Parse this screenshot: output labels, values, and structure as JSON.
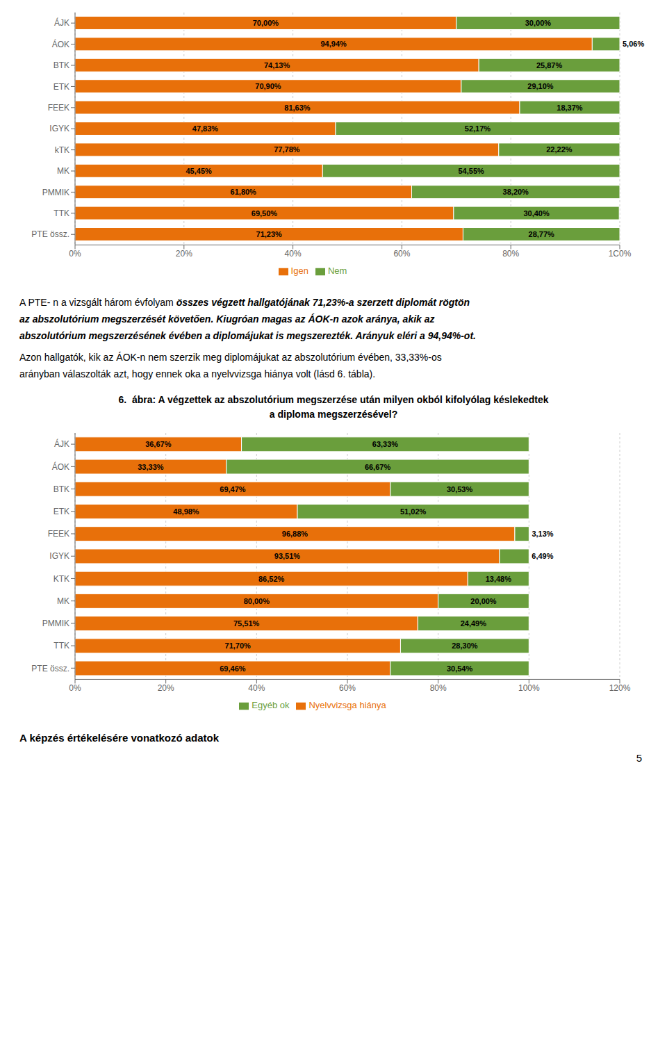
{
  "chart_data": [
    {
      "type": "bar",
      "orientation": "horizontal",
      "stacked": true,
      "data_labels": true,
      "grid": true,
      "legend": "bottom",
      "categories": [
        "ÁJK",
        "ÁOK",
        "BTK",
        "ETK",
        "FEEK",
        "IGYK",
        "kTK",
        "MK",
        "PMMIK",
        "TTK",
        "PTE össz."
      ],
      "series": [
        {
          "name": "Igen",
          "color": "#E8700A",
          "values": [
            70.0,
            94.94,
            74.13,
            70.9,
            81.63,
            47.83,
            77.78,
            45.45,
            61.8,
            69.5,
            71.23
          ],
          "value_labels": [
            "70,00%",
            "94,94%",
            "74,13%",
            "70,90%",
            "81,63%",
            "47,83%",
            "77,78%",
            "45,45%",
            "61,80%",
            "69,50%",
            "71,23%"
          ]
        },
        {
          "name": "Nem",
          "color": "#6A9E3C",
          "values": [
            30.0,
            5.06,
            25.87,
            29.1,
            18.37,
            52.17,
            22.22,
            54.55,
            38.2,
            30.4,
            28.77
          ],
          "value_labels": [
            "30,00%",
            "5,06%",
            "25,87%",
            "29,10%",
            "18,37%",
            "52,17%",
            "22,22%",
            "54,55%",
            "38,20%",
            "30,40%",
            "28,77%"
          ]
        }
      ],
      "xlim": [
        0,
        100
      ],
      "xticks": [
        {
          "value": 0,
          "label": "0%"
        },
        {
          "value": 20,
          "label": "20%"
        },
        {
          "value": 40,
          "label": "40%"
        },
        {
          "value": 60,
          "label": "60%"
        },
        {
          "value": 80,
          "label": "80%"
        },
        {
          "value": 100,
          "label": "1C0%"
        }
      ]
    },
    {
      "type": "bar",
      "orientation": "horizontal",
      "stacked": true,
      "data_labels": true,
      "grid": true,
      "legend": "bottom",
      "title": "6.  ábra: A végzettek az abszolutórium megszerzése után milyen okból kifolyólag késlekedtek\na diploma megszerzésével?",
      "categories": [
        "ÁJK",
        "ÁOK",
        "BTK",
        "ETK",
        "FEEK",
        "IGYK",
        "KTK",
        "MK",
        "PMMIK",
        "TTK",
        "PTE össz."
      ],
      "series": [
        {
          "name": "Nyelvvizsga hiánya",
          "color": "#E8700A",
          "values": [
            36.67,
            33.33,
            69.47,
            48.98,
            96.88,
            93.51,
            86.52,
            80.0,
            75.51,
            71.7,
            69.46
          ],
          "value_labels": [
            "36,67%",
            "33,33%",
            "69,47%",
            "48,98%",
            "96,88%",
            "93,51%",
            "86,52%",
            "80,00%",
            "75,51%",
            "71,70%",
            "69,46%"
          ]
        },
        {
          "name": "Egyéb ok",
          "color": "#6A9E3C",
          "values": [
            63.33,
            66.67,
            30.53,
            51.02,
            3.13,
            6.49,
            13.48,
            20.0,
            24.49,
            28.3,
            30.54
          ],
          "value_labels": [
            "63,33%",
            "66,67%",
            "30,53%",
            "51,02%",
            "3,13%",
            "6,49%",
            "13,48%",
            "20,00%",
            "24,49%",
            "28,30%",
            "30,54%"
          ]
        }
      ],
      "xlim": [
        0,
        120
      ],
      "xticks": [
        {
          "value": 0,
          "label": "0%"
        },
        {
          "value": 20,
          "label": "20%"
        },
        {
          "value": 40,
          "label": "40%"
        },
        {
          "value": 60,
          "label": "60%"
        },
        {
          "value": 80,
          "label": "80%"
        },
        {
          "value": 100,
          "label": "100%"
        },
        {
          "value": 120,
          "label": "120%"
        }
      ]
    }
  ],
  "annotations": [
    [
      {
        "text": "A PTE- n a vizsgált három évfolyam ",
        "style": "normal"
      },
      {
        "text": "összes végzett hallgatójának 71,23%-a szerzett diplomát rögtön",
        "style": "bold italic"
      }
    ],
    [
      {
        "text": "az abszolutórium megszerzését követően. Kiugróan magas az ÁOK-n azok aránya, akik az",
        "style": "bold italic"
      }
    ],
    [
      {
        "text": "abszolutórium megszerzésének évében a diplomájukat is megszerezték. Arányuk eléri a 94,94%-ot.",
        "style": "bold italic"
      }
    ],
    [
      {
        "text": "Azon hallgatók, kik az ÁOK-n nem szerzik meg diplomájukat az abszolutórium évében, 33,33%-os",
        "style": "normal"
      }
    ],
    [
      {
        "text": "arányban válaszolták azt, hogy ennek oka a nyelvvizsga hiánya volt (lásd 6. tábla).",
        "style": "normal"
      }
    ]
  ],
  "footer": "A képzés értékelésére vonatkozó adatok",
  "page_number": "5"
}
